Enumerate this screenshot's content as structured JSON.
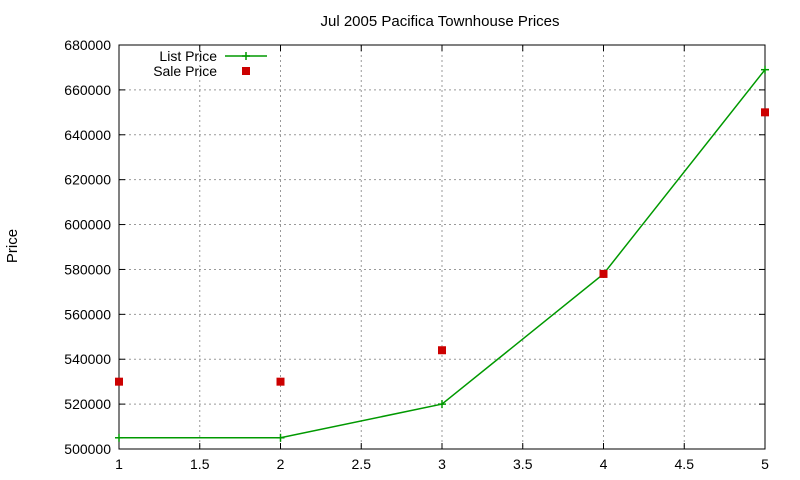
{
  "chart_data": {
    "type": "line",
    "title": "Jul 2005 Pacifica Townhouse Prices",
    "xlabel": "",
    "ylabel": "Price",
    "xlim": [
      1,
      5
    ],
    "ylim": [
      500000,
      680000
    ],
    "x_ticks": [
      "1",
      "1.5",
      "2",
      "2.5",
      "3",
      "3.5",
      "4",
      "4.5",
      "5"
    ],
    "y_ticks": [
      "500000",
      "520000",
      "540000",
      "560000",
      "580000",
      "600000",
      "620000",
      "640000",
      "660000",
      "680000"
    ],
    "grid": true,
    "legend_position": "top-left",
    "series": [
      {
        "name": "List Price",
        "style": "linespoints",
        "marker": "plus",
        "color": "#009900",
        "x": [
          1,
          2,
          3,
          4,
          5
        ],
        "y": [
          505000,
          505000,
          520000,
          578000,
          669000
        ]
      },
      {
        "name": "Sale Price",
        "style": "points",
        "marker": "square",
        "color": "#cc0000",
        "x": [
          1,
          2,
          3,
          4,
          5
        ],
        "y": [
          530000,
          530000,
          544000,
          578000,
          650000
        ]
      }
    ]
  }
}
